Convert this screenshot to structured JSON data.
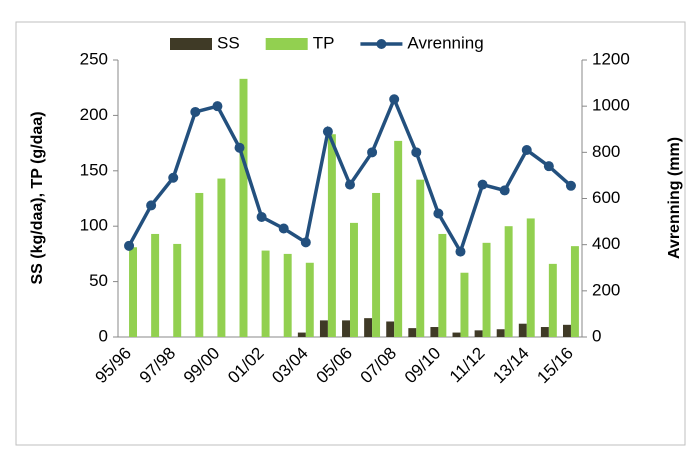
{
  "chart_data": {
    "type": "bar-line",
    "categories": [
      "95/96",
      null,
      "97/98",
      null,
      "99/00",
      null,
      "01/02",
      null,
      "03/04",
      null,
      "05/06",
      null,
      "07/08",
      null,
      "09/10",
      null,
      "11/12",
      null,
      "13/14",
      null,
      "15/16"
    ],
    "series": [
      {
        "name": "SS",
        "type": "bar",
        "color": "#3f3a26",
        "values": [
          0,
          0,
          0,
          0,
          0,
          0,
          0,
          0,
          4,
          15,
          15,
          17,
          14,
          8,
          9,
          4,
          6,
          7,
          12,
          9,
          11
        ]
      },
      {
        "name": "TP",
        "type": "bar",
        "color": "#92d050",
        "values": [
          81,
          93,
          84,
          130,
          143,
          233,
          78,
          75,
          67,
          183,
          103,
          130,
          177,
          142,
          93,
          58,
          85,
          100,
          107,
          66,
          82
        ]
      },
      {
        "name": "Avrenning",
        "type": "line",
        "axis": "y2",
        "color": "#23507e",
        "values": [
          395,
          570,
          690,
          975,
          1000,
          820,
          520,
          470,
          410,
          890,
          660,
          800,
          1030,
          800,
          535,
          370,
          660,
          635,
          810,
          740,
          655
        ]
      }
    ],
    "y_label": "SS (kg/daa), TP (g/daa)",
    "y2_label": "Avrenning (mm)",
    "ylim": [
      0,
      250
    ],
    "yticks": [
      0,
      50,
      100,
      150,
      200,
      250
    ],
    "y2lim": [
      0,
      1200
    ],
    "y2ticks": [
      0,
      200,
      400,
      600,
      800,
      1000,
      1200
    ],
    "legend": "top"
  }
}
